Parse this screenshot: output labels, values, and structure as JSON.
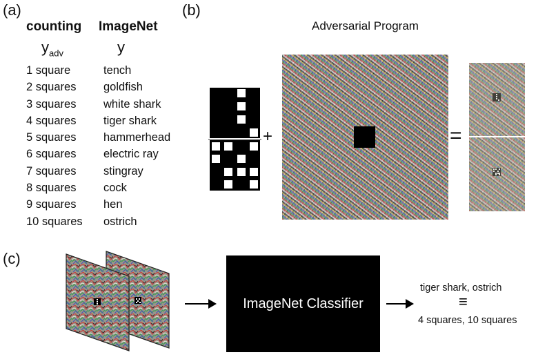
{
  "panels": {
    "a": "(a)",
    "b": "(b)",
    "c": "(c)"
  },
  "table": {
    "col1_header": "counting",
    "col2_header": "ImageNet",
    "col1_symbol": "y",
    "col1_symbol_sub": "adv",
    "col2_symbol": "y",
    "rows": [
      {
        "count": "1 square",
        "label": "tench"
      },
      {
        "count": "2 squares",
        "label": "goldfish"
      },
      {
        "count": "3 squares",
        "label": "white shark"
      },
      {
        "count": "4 squares",
        "label": "tiger shark"
      },
      {
        "count": "5 squares",
        "label": "hammerhead"
      },
      {
        "count": "6 squares",
        "label": "electric ray"
      },
      {
        "count": "7 squares",
        "label": "stingray"
      },
      {
        "count": "8 squares",
        "label": "cock"
      },
      {
        "count": "9 squares",
        "label": "hen"
      },
      {
        "count": "10 squares",
        "label": "ostrich"
      }
    ]
  },
  "panel_b": {
    "title": "Adversarial Program",
    "plus": "+",
    "equals": "="
  },
  "panel_c": {
    "classifier_label": "ImageNet Classifier",
    "output_top": "tiger shark, ostrich",
    "output_equiv": "≡",
    "output_bottom": "4 squares, 10 squares"
  }
}
